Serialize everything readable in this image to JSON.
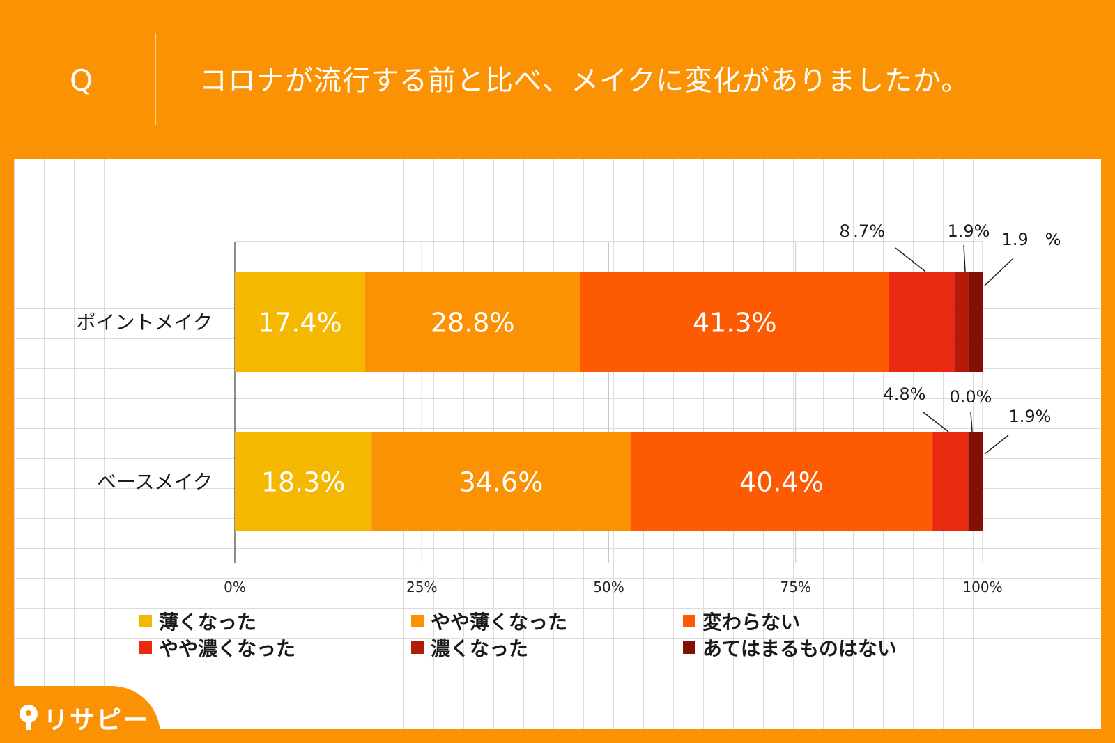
{
  "header": {
    "q_mark": "Q",
    "question": "コロナが流行する前と比べ、メイクに変化がありましたか。"
  },
  "brand": {
    "logo_text": "リサピー"
  },
  "colors": {
    "background": "#FA9204",
    "series": [
      "#F5B800",
      "#FA9204",
      "#FC5A03",
      "#EA2A10",
      "#B41A08",
      "#821005"
    ]
  },
  "chart_data": {
    "type": "bar",
    "orientation": "horizontal",
    "stacked": true,
    "title": "コロナが流行する前と比べ、メイクに変化がありましたか。",
    "categories": [
      "ポイントメイク",
      "ベースメイク"
    ],
    "series": [
      {
        "name": "薄くなった",
        "values": [
          17.4,
          18.3
        ]
      },
      {
        "name": "やや薄くなった",
        "values": [
          28.8,
          34.6
        ]
      },
      {
        "name": "変わらない",
        "values": [
          41.3,
          40.4
        ]
      },
      {
        "name": "やや濃くなった",
        "values": [
          8.7,
          4.8
        ]
      },
      {
        "name": "濃くなった",
        "values": [
          1.9,
          0.0
        ]
      },
      {
        "name": "あてはまるものはない",
        "values": [
          1.9,
          1.9
        ]
      }
    ],
    "value_labels": [
      [
        "17.4%",
        "28.8%",
        "41.3%",
        "８.7%",
        "1.9%",
        "1.9　%"
      ],
      [
        "18.3%",
        "34.6%",
        "40.4%",
        "4.8%",
        "0.0%",
        "1.9%"
      ]
    ],
    "x_ticks": [
      "0%",
      "25%",
      "50%",
      "75%",
      "100%"
    ],
    "x_tick_values": [
      0,
      25,
      50,
      75,
      100
    ],
    "xlim": [
      0,
      100
    ],
    "xlabel": "",
    "ylabel": "",
    "grid": true,
    "legend_position": "bottom"
  },
  "legend": [
    {
      "label": "薄くなった",
      "color": "#F5B800"
    },
    {
      "label": "やや薄くなった",
      "color": "#FA9204"
    },
    {
      "label": "変わらない",
      "color": "#FC5A03"
    },
    {
      "label": "やや濃くなった",
      "color": "#EA2A10"
    },
    {
      "label": "濃くなった",
      "color": "#B41A08"
    },
    {
      "label": "あてはまるものはない",
      "color": "#821005"
    }
  ]
}
